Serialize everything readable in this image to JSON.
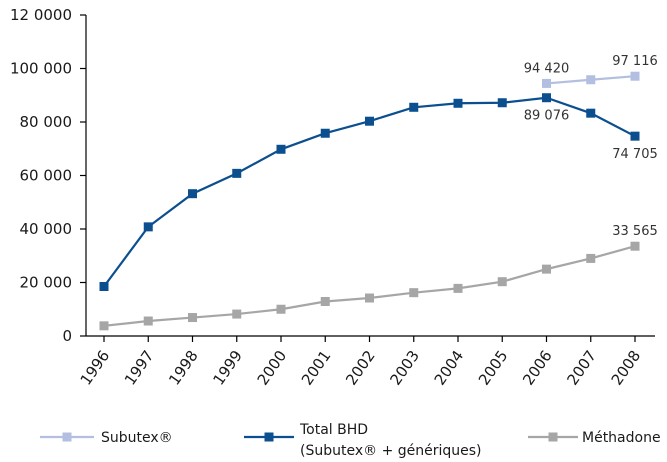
{
  "chart_data": {
    "type": "line",
    "x": [
      "1996",
      "1997",
      "1998",
      "1999",
      "2000",
      "2001",
      "2002",
      "2003",
      "2004",
      "2005",
      "2006",
      "2007",
      "2008"
    ],
    "ylim": [
      0,
      120000
    ],
    "yticks": [
      0,
      20000,
      40000,
      60000,
      80000,
      100000,
      120000
    ],
    "ytick_labels": [
      "0",
      "20 000",
      "40 000",
      "60 000",
      "80 000",
      "100 000",
      "12 0000"
    ],
    "grid": false,
    "legend_position": "bottom",
    "series": [
      {
        "key": "subutex",
        "name": "Subutex®",
        "color": "#b3bfe0",
        "values": [
          null,
          null,
          null,
          null,
          null,
          null,
          null,
          null,
          null,
          null,
          94420,
          95800,
          97116
        ]
      },
      {
        "key": "bhd",
        "name_line1": "Total BHD",
        "name_line2": "(Subutex® + génériques)",
        "color": "#0b4f8f",
        "values": [
          18500,
          40800,
          53200,
          60800,
          69800,
          75800,
          80300,
          85500,
          87000,
          87200,
          89076,
          83300,
          74705
        ]
      },
      {
        "key": "methadone",
        "name": "Méthadone",
        "color": "#a6a6a6",
        "values": [
          3800,
          5600,
          6900,
          8200,
          10000,
          12900,
          14200,
          16200,
          17800,
          20300,
          25000,
          29000,
          33565
        ]
      }
    ],
    "annotations": [
      {
        "series": "subutex",
        "index": 10,
        "text": "94 420",
        "pos": "above"
      },
      {
        "series": "subutex",
        "index": 12,
        "text": "97 116",
        "pos": "above"
      },
      {
        "series": "bhd",
        "index": 10,
        "text": "89 076",
        "pos": "below"
      },
      {
        "series": "bhd",
        "index": 12,
        "text": "74 705",
        "pos": "below"
      },
      {
        "series": "methadone",
        "index": 12,
        "text": "33 565",
        "pos": "above"
      }
    ]
  }
}
